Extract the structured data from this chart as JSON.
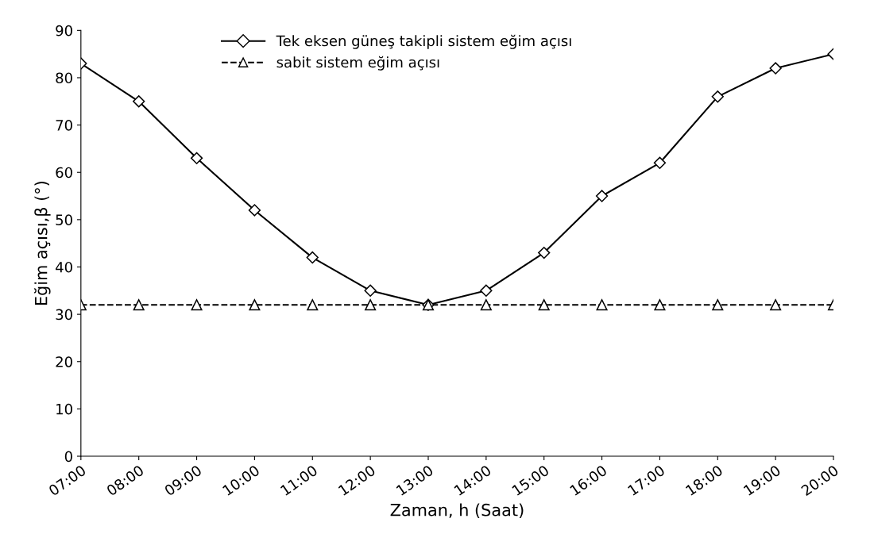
{
  "chart_data": {
    "type": "line",
    "xlabel": "Zaman, h (Saat)",
    "ylabel": "Eğim açısı,β (°)",
    "categories": [
      "07:00",
      "08:00",
      "09:00",
      "10:00",
      "11:00",
      "12:00",
      "13:00",
      "14:00",
      "15:00",
      "16:00",
      "17:00",
      "18:00",
      "19:00",
      "20:00"
    ],
    "series": [
      {
        "name": "Tek eksen güneş takipli sistem eğim açısı",
        "color": "#000000",
        "marker": "diamond",
        "line_style": "solid",
        "values": [
          83,
          75,
          63,
          52,
          42,
          35,
          32,
          35,
          43,
          55,
          62,
          76,
          82,
          85
        ]
      },
      {
        "name": "sabit sistem eğim açısı",
        "color": "#000000",
        "marker": "triangle",
        "line_style": "dashed",
        "values": [
          32,
          32,
          32,
          32,
          32,
          32,
          32,
          32,
          32,
          32,
          32,
          32,
          32,
          32
        ]
      }
    ],
    "ylim": [
      0,
      90
    ],
    "yticks": [
      0,
      10,
      20,
      30,
      40,
      50,
      60,
      70,
      80,
      90
    ],
    "grid": false,
    "legend": "top"
  }
}
